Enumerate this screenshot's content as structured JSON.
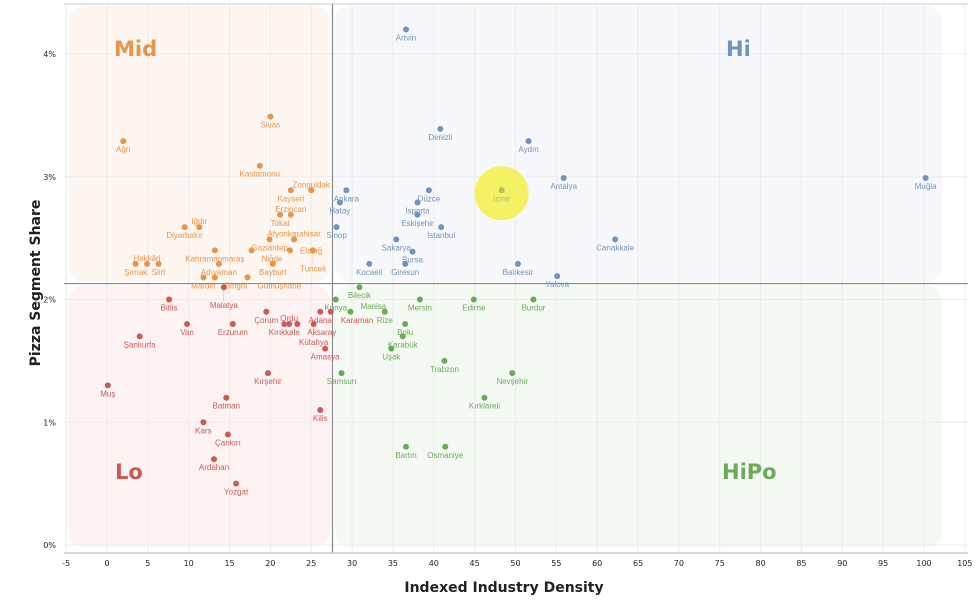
{
  "chart_data": {
    "type": "scatter",
    "title": "",
    "xlabel": "Indexed Industry Density",
    "ylabel": "Pizza Segment Share",
    "xlim": [
      -5,
      105
    ],
    "ylim": [
      0,
      4.3
    ],
    "x_ticks": [
      "-5",
      "0",
      "5",
      "10",
      "15",
      "20",
      "25",
      "30",
      "35",
      "40",
      "45",
      "50",
      "55",
      "60",
      "65",
      "70",
      "75",
      "80",
      "85",
      "90",
      "95",
      "100",
      "105"
    ],
    "y_ticks": [
      "0%",
      "1%",
      "2%",
      "3%",
      "4%"
    ],
    "grid": true,
    "dividers": {
      "x": 27.6,
      "y": 2.13
    },
    "quadrants": [
      {
        "name": "Mid",
        "color": "#e8944a",
        "bg": "#fdf6f1"
      },
      {
        "name": "Hi",
        "color": "#7393be",
        "bg": "#f6f8fc"
      },
      {
        "name": "Lo",
        "color": "#cc5a56",
        "bg": "#fdf3f2"
      },
      {
        "name": "HiPo",
        "color": "#6aaa58",
        "bg": "#f5f9f3"
      }
    ],
    "highlight": {
      "label": "İzmir",
      "color": "#f5f04a"
    },
    "series": [
      {
        "name": "Mid",
        "color": "#e8944a",
        "points": [
          {
            "label": "Ağrı",
            "x": 2.0,
            "y": 3.29
          },
          {
            "label": "Sivas",
            "x": 20.0,
            "y": 3.49
          },
          {
            "label": "Kastamonu",
            "x": 18.7,
            "y": 3.09
          },
          {
            "label": "Zonguldak",
            "x": 25.0,
            "y": 2.89
          },
          {
            "label": "Kayseri",
            "x": 22.5,
            "y": 2.89
          },
          {
            "label": "Erzincan",
            "x": 22.5,
            "y": 2.69
          },
          {
            "label": "Tokat",
            "x": 21.2,
            "y": 2.69
          },
          {
            "label": "Afyonkarahisar",
            "x": 22.9,
            "y": 2.49
          },
          {
            "label": "Elazığ",
            "x": 22.4,
            "y": 2.4
          },
          {
            "label": "Niğde",
            "x": 17.7,
            "y": 2.4
          },
          {
            "label": "Tunceli",
            "x": 25.2,
            "y": 2.4
          },
          {
            "label": "Bayburt",
            "x": 20.3,
            "y": 2.29
          },
          {
            "label": "Gaziantep",
            "x": 19.9,
            "y": 2.49
          },
          {
            "label": "Diyarbakır",
            "x": 9.5,
            "y": 2.59
          },
          {
            "label": "Iğdır",
            "x": 11.3,
            "y": 2.59
          },
          {
            "label": "Kahramanmaraş",
            "x": 13.2,
            "y": 2.4
          },
          {
            "label": "Adıyaman",
            "x": 13.7,
            "y": 2.29
          },
          {
            "label": "Mardin",
            "x": 11.8,
            "y": 2.18
          },
          {
            "label": "Bingöl",
            "x": 13.2,
            "y": 2.18
          },
          {
            "label": "Gümüşhane",
            "x": 17.2,
            "y": 2.18
          },
          {
            "label": "Hakkâri",
            "x": 4.9,
            "y": 2.29
          },
          {
            "label": "Şırnak",
            "x": 3.5,
            "y": 2.29
          },
          {
            "label": "Siirt",
            "x": 6.3,
            "y": 2.29
          }
        ]
      },
      {
        "name": "Hi",
        "color": "#7393be",
        "points": [
          {
            "label": "Artvin",
            "x": 36.6,
            "y": 4.2
          },
          {
            "label": "Denizli",
            "x": 40.8,
            "y": 3.39
          },
          {
            "label": "Aydın",
            "x": 51.6,
            "y": 3.29
          },
          {
            "label": "Antalya",
            "x": 55.9,
            "y": 2.99
          },
          {
            "label": "Muğla",
            "x": 100.2,
            "y": 2.99
          },
          {
            "label": "Ankara",
            "x": 29.3,
            "y": 2.89
          },
          {
            "label": "Düzce",
            "x": 39.4,
            "y": 2.89
          },
          {
            "label": "Isparta",
            "x": 38.0,
            "y": 2.79
          },
          {
            "label": "Hatay",
            "x": 28.5,
            "y": 2.79
          },
          {
            "label": "Eskişehir",
            "x": 38.0,
            "y": 2.69
          },
          {
            "label": "Sinop",
            "x": 28.1,
            "y": 2.59
          },
          {
            "label": "İstanbul",
            "x": 40.9,
            "y": 2.59
          },
          {
            "label": "Sakarya",
            "x": 35.4,
            "y": 2.49
          },
          {
            "label": "Bursa",
            "x": 37.4,
            "y": 2.39
          },
          {
            "label": "Kocaeli",
            "x": 32.1,
            "y": 2.29
          },
          {
            "label": "Giresun",
            "x": 36.5,
            "y": 2.29
          },
          {
            "label": "Balıkesir",
            "x": 50.3,
            "y": 2.29
          },
          {
            "label": "Yalova",
            "x": 55.1,
            "y": 2.19
          },
          {
            "label": "Canakkale",
            "x": 62.2,
            "y": 2.49
          }
        ]
      },
      {
        "name": "Lo",
        "color": "#cc5a56",
        "points": [
          {
            "label": "Malatya",
            "x": 14.3,
            "y": 2.1
          },
          {
            "label": "Bitlis",
            "x": 7.6,
            "y": 2.0
          },
          {
            "label": "Adana",
            "x": 26.1,
            "y": 1.9
          },
          {
            "label": "Karaman",
            "x": 27.4,
            "y": 1.9
          },
          {
            "label": "Çorum",
            "x": 19.5,
            "y": 1.9
          },
          {
            "label": "Van",
            "x": 9.8,
            "y": 1.8
          },
          {
            "label": "Erzurum",
            "x": 15.4,
            "y": 1.8
          },
          {
            "label": "Kırıkkale",
            "x": 21.7,
            "y": 1.8
          },
          {
            "label": "Ordu",
            "x": 22.3,
            "y": 1.8
          },
          {
            "label": "Aksaray",
            "x": 23.3,
            "y": 1.8
          },
          {
            "label": "Kütahya",
            "x": 25.3,
            "y": 1.8
          },
          {
            "label": "Şanlıurfa",
            "x": 4.0,
            "y": 1.7
          },
          {
            "label": "Amasya",
            "x": 26.7,
            "y": 1.6
          },
          {
            "label": "Kırşehir",
            "x": 19.7,
            "y": 1.4
          },
          {
            "label": "Muş",
            "x": 0.1,
            "y": 1.3
          },
          {
            "label": "Batman",
            "x": 14.6,
            "y": 1.2
          },
          {
            "label": "Kilis",
            "x": 26.1,
            "y": 1.1
          },
          {
            "label": "Kars",
            "x": 11.8,
            "y": 1.0
          },
          {
            "label": "Çankırı",
            "x": 14.8,
            "y": 0.9
          },
          {
            "label": "Ardahan",
            "x": 13.1,
            "y": 0.7
          },
          {
            "label": "Yozgat",
            "x": 15.8,
            "y": 0.5
          }
        ]
      },
      {
        "name": "HiPo",
        "color": "#6aaa58",
        "points": [
          {
            "label": "İzmir",
            "x": 48.3,
            "y": 2.89
          },
          {
            "label": "Bilecik",
            "x": 30.9,
            "y": 2.1
          },
          {
            "label": "Konya",
            "x": 28.0,
            "y": 2.0
          },
          {
            "label": "Mersin",
            "x": 38.3,
            "y": 2.0
          },
          {
            "label": "Edirne",
            "x": 44.9,
            "y": 2.0
          },
          {
            "label": "Burdur",
            "x": 52.2,
            "y": 2.0
          },
          {
            "label": "Manisa",
            "x": 29.8,
            "y": 1.9
          },
          {
            "label": "Rize",
            "x": 34.0,
            "y": 1.9
          },
          {
            "label": "Bolu",
            "x": 36.5,
            "y": 1.8
          },
          {
            "label": "Karabük",
            "x": 36.2,
            "y": 1.7
          },
          {
            "label": "Uşak",
            "x": 34.8,
            "y": 1.6
          },
          {
            "label": "Trabzon",
            "x": 41.3,
            "y": 1.5
          },
          {
            "label": "Samsun",
            "x": 28.7,
            "y": 1.4
          },
          {
            "label": "Nevşehir",
            "x": 49.6,
            "y": 1.4
          },
          {
            "label": "Kırklareli",
            "x": 46.2,
            "y": 1.2
          },
          {
            "label": "Bartın",
            "x": 36.6,
            "y": 0.8
          },
          {
            "label": "Osmaniye",
            "x": 41.4,
            "y": 0.8
          }
        ]
      }
    ]
  }
}
